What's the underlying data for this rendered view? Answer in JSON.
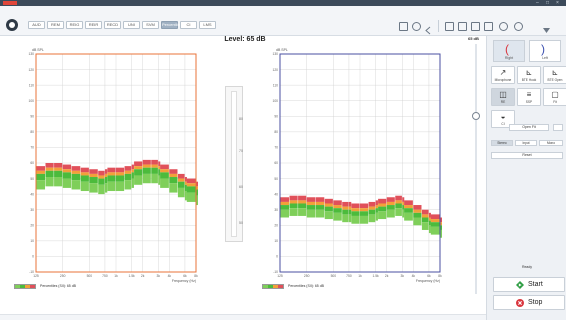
{
  "window": {
    "brand_color": "#e0463a",
    "controls": [
      "–",
      "□",
      "×"
    ]
  },
  "toolbar": {
    "tabs": [
      {
        "label": "AUD",
        "active": false
      },
      {
        "label": "REM",
        "active": false
      },
      {
        "label": "REIG",
        "active": false
      },
      {
        "label": "REIR",
        "active": false
      },
      {
        "label": "RECD",
        "active": false
      },
      {
        "label": "UNI",
        "active": false
      },
      {
        "label": "SVM",
        "active": false
      },
      {
        "label": "Percentile",
        "active": true
      },
      {
        "label": "CI",
        "active": false
      },
      {
        "label": "LMS",
        "active": false
      }
    ]
  },
  "main": {
    "level_label": "Level: 65 dB"
  },
  "charts": {
    "y_unit": "dB SPL",
    "x_unit": "Frequency (Hz)",
    "y_ticks": [
      "130",
      "120",
      "110",
      "100",
      "90",
      "80",
      "70",
      "60",
      "50",
      "40",
      "30",
      "20",
      "10",
      "0",
      "-10"
    ],
    "x_ticks": [
      "125",
      "250",
      "500",
      "750",
      "1k",
      "1.5k",
      "2k",
      "3k",
      "4k",
      "6k",
      "8k"
    ],
    "left_color": "#e8733a",
    "right_color": "#4a4fa0",
    "band_colors": {
      "upper": "#e0505a",
      "mid_upper": "#f2a03a",
      "mid": "#4cbb3c",
      "lower": "#7fcf5a"
    }
  },
  "chart_data": [
    {
      "type": "area",
      "title": "",
      "side": "right",
      "xlabel": "Frequency (Hz)",
      "ylabel": "dB SPL",
      "ylim": [
        -10,
        130
      ],
      "x": [
        125,
        160,
        200,
        250,
        315,
        400,
        500,
        630,
        750,
        800,
        1000,
        1250,
        1500,
        1600,
        2000,
        2500,
        3000,
        3150,
        4000,
        5000,
        6000,
        6300,
        8000
      ],
      "series": [
        {
          "name": "",
          "values": [
            58,
            60,
            60,
            59,
            58,
            57,
            56,
            55,
            56,
            57,
            57,
            58,
            59,
            61,
            62,
            62,
            61,
            59,
            56,
            53,
            51,
            50,
            48
          ]
        },
        {
          "name": "",
          "values": [
            55,
            57,
            57,
            56,
            55,
            54,
            53,
            52,
            53,
            54,
            54,
            55,
            56,
            58,
            59,
            59,
            58,
            56,
            53,
            50,
            48,
            47,
            45
          ]
        },
        {
          "name": "",
          "values": [
            49,
            51,
            51,
            50,
            49,
            48,
            47,
            46,
            47,
            48,
            48,
            49,
            50,
            52,
            53,
            53,
            52,
            50,
            47,
            44,
            42,
            41,
            39
          ]
        },
        {
          "name": "",
          "values": [
            43,
            45,
            45,
            44,
            43,
            42,
            41,
            40,
            41,
            42,
            42,
            43,
            44,
            46,
            47,
            47,
            46,
            44,
            41,
            38,
            36,
            35,
            33
          ]
        }
      ]
    },
    {
      "type": "area",
      "title": "",
      "side": "left",
      "xlabel": "Frequency (Hz)",
      "ylabel": "dB SPL",
      "ylim": [
        -10,
        130
      ],
      "x": [
        125,
        160,
        200,
        250,
        315,
        400,
        500,
        630,
        750,
        800,
        1000,
        1250,
        1500,
        1600,
        2000,
        2500,
        3000,
        3150,
        4000,
        5000,
        6000,
        6300,
        8000
      ],
      "series": [
        {
          "name": "",
          "values": [
            38,
            39,
            39,
            38,
            38,
            37,
            36,
            35,
            35,
            34,
            34,
            35,
            36,
            37,
            38,
            39,
            38,
            36,
            33,
            30,
            28,
            27,
            25
          ]
        },
        {
          "name": "",
          "values": [
            35,
            36,
            36,
            35,
            35,
            34,
            33,
            32,
            32,
            31,
            31,
            32,
            33,
            34,
            35,
            36,
            35,
            33,
            30,
            27,
            25,
            24,
            22
          ]
        },
        {
          "name": "",
          "values": [
            30,
            31,
            31,
            30,
            30,
            29,
            28,
            27,
            27,
            26,
            26,
            27,
            28,
            29,
            30,
            31,
            30,
            28,
            25,
            22,
            20,
            19,
            17
          ]
        },
        {
          "name": "",
          "values": [
            25,
            26,
            26,
            25,
            25,
            24,
            23,
            22,
            22,
            21,
            21,
            22,
            23,
            24,
            25,
            26,
            25,
            23,
            20,
            17,
            15,
            14,
            12
          ]
        }
      ]
    }
  ],
  "level_meter": {
    "ticks": [
      "80",
      "70",
      "60",
      "50"
    ]
  },
  "legend": {
    "left_text": "Percentiles (SII): 65 dB",
    "right_text": "Percentiles (SII): 65 dB"
  },
  "slider": {
    "value_label": "65 dB",
    "value": 65
  },
  "sidebar": {
    "ears": [
      {
        "label": "Right",
        "glyph": "(",
        "color": "#d9363e",
        "selected": true
      },
      {
        "label": "Left",
        "glyph": ")",
        "color": "#3b4fb0",
        "selected": false
      }
    ],
    "buttons_row1": [
      {
        "label": "Microphone",
        "icon": "↗"
      },
      {
        "label": "BTE Hook",
        "icon": "⊾"
      },
      {
        "label": "BTE Open",
        "icon": "⊾"
      }
    ],
    "buttons_row2": [
      {
        "label": "RE",
        "icon": "◫"
      },
      {
        "label": "SSP",
        "icon": "≡"
      },
      {
        "label": "Fit",
        "icon": "▢"
      }
    ],
    "buttons_row3": [
      {
        "label": "CI",
        "icon": "◒"
      }
    ],
    "open_fit_label": "Open Fit",
    "open_fit_value": "",
    "segments": [
      {
        "label": "Stereo",
        "selected": true
      },
      {
        "label": "Input",
        "selected": false
      },
      {
        "label": "Mono",
        "selected": false
      }
    ],
    "reset_label": "Reset",
    "ready_label": "Ready",
    "start_label": "Start",
    "stop_label": "Stop"
  }
}
